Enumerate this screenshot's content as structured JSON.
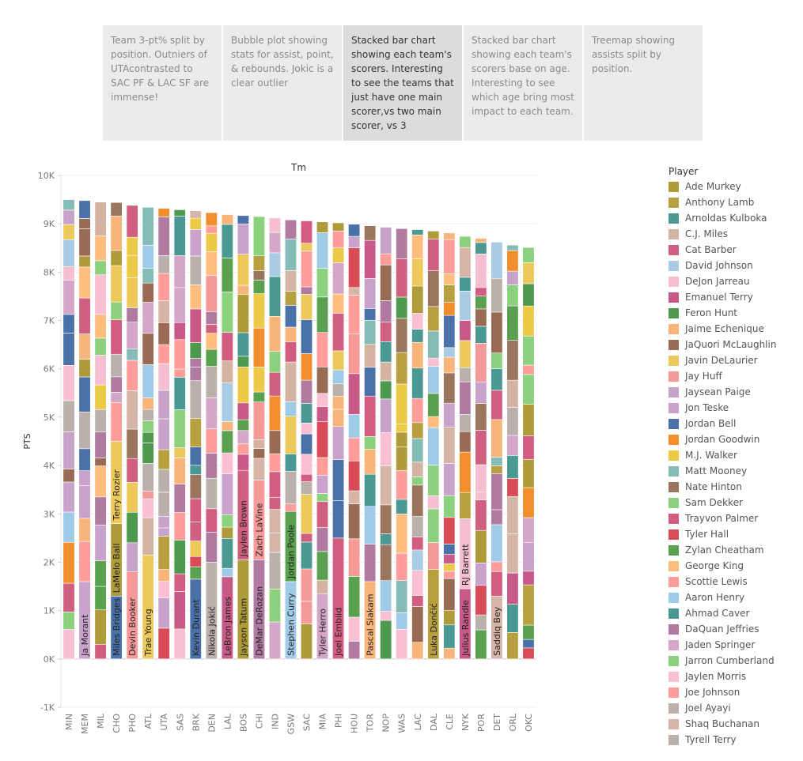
{
  "story": {
    "cards": [
      {
        "text": "Team 3-pt% split by position. Outniers of UTAcontrasted to SAC PF & LAC SF are immense!",
        "active": false
      },
      {
        "text": "Bubble plot showing stats for assist, point, & rebounds. Jokic is a clear outlier",
        "active": false
      },
      {
        "text": "Stacked bar chart showing each team's scorers. Interesting to see the teams that just have one main scorer,vs two main scorer, vs 3",
        "active": true
      },
      {
        "text": "Stacked bar chart showing each team's scorers base on age. Interesting to see which age bring most impact to each team.",
        "active": false
      },
      {
        "text": "Treemap showing assists split by position.",
        "active": false
      }
    ]
  },
  "chart_data": {
    "type": "bar",
    "stacked": true,
    "title": "Tm",
    "xlabel": "",
    "ylabel": "PTS",
    "ylim": [
      -1000,
      10000
    ],
    "yticks": [
      -1000,
      0,
      1000,
      2000,
      3000,
      4000,
      5000,
      6000,
      7000,
      8000,
      9000,
      10000
    ],
    "ytick_labels": [
      "-1K",
      "0K",
      "1K",
      "2K",
      "3K",
      "4K",
      "5K",
      "6K",
      "7K",
      "8K",
      "9K",
      "10K"
    ],
    "grid": true,
    "legend_position": "right",
    "categories": [
      "MIN",
      "MEM",
      "MIL",
      "CHO",
      "PHO",
      "ATL",
      "UTA",
      "SAS",
      "BRK",
      "DEN",
      "LAL",
      "BOS",
      "CHI",
      "IND",
      "GSW",
      "SAC",
      "MIA",
      "PHI",
      "HOU",
      "TOR",
      "NOP",
      "WAS",
      "LAC",
      "DAL",
      "CLE",
      "NYK",
      "POR",
      "DET",
      "ORL",
      "OKC"
    ],
    "totals": [
      9500,
      9480,
      9450,
      9440,
      9380,
      9340,
      9320,
      9290,
      9270,
      9230,
      9190,
      9170,
      9150,
      9120,
      9080,
      9060,
      9040,
      9020,
      8990,
      8960,
      8930,
      8900,
      8880,
      8850,
      8810,
      8740,
      8700,
      8620,
      8560,
      8510
    ],
    "annotations": [
      {
        "team": "MEM",
        "label": "Ja Morant",
        "value": 1600
      },
      {
        "team": "CHO",
        "label": "Miles Bridges",
        "value": 1300
      },
      {
        "team": "CHO",
        "label": "LaMelo Ball",
        "value": 1500
      },
      {
        "team": "CHO",
        "label": "Terry Rozier",
        "value": 1700
      },
      {
        "team": "PHO",
        "label": "Devin Booker",
        "value": 1800
      },
      {
        "team": "ATL",
        "label": "Trae Young",
        "value": 2150
      },
      {
        "team": "BRK",
        "label": "Kevin Durant",
        "value": 1650
      },
      {
        "team": "DEN",
        "label": "Nikola Jokić",
        "value": 2000
      },
      {
        "team": "LAL",
        "label": "LeBron James",
        "value": 1700
      },
      {
        "team": "BOS",
        "label": "Jayson Tatum",
        "value": 2050
      },
      {
        "team": "BOS",
        "label": "Jaylen Brown",
        "value": 1850
      },
      {
        "team": "CHI",
        "label": "DeMar DeRozan",
        "value": 2050
      },
      {
        "team": "CHI",
        "label": "Zach LaVine",
        "value": 1650
      },
      {
        "team": "GSW",
        "label": "Stephen Curry",
        "value": 1600
      },
      {
        "team": "GSW",
        "label": "Jordan Poole",
        "value": 1450
      },
      {
        "team": "MIA",
        "label": "Tyler Herro",
        "value": 1350
      },
      {
        "team": "PHI",
        "label": "Joel Embiid",
        "value": 2500
      },
      {
        "team": "TOR",
        "label": "Pascal Siakam",
        "value": 1600
      },
      {
        "team": "DAL",
        "label": "Luka Dončić",
        "value": 1850
      },
      {
        "team": "NYK",
        "label": "Julius Randle",
        "value": 1450
      },
      {
        "team": "NYK",
        "label": "RJ Barrett",
        "value": 1450
      },
      {
        "team": "DET",
        "label": "Saddiq Bey",
        "value": 1300
      }
    ],
    "legend": {
      "title": "Player",
      "items": [
        {
          "name": "Ade Murkey",
          "color": "#b09b3a"
        },
        {
          "name": "Anthony Lamb",
          "color": "#b8a040"
        },
        {
          "name": "Arnoldas Kulboka",
          "color": "#4a9a93"
        },
        {
          "name": "C.J. Miles",
          "color": "#d5b3a2"
        },
        {
          "name": "Cat Barber",
          "color": "#d0607f"
        },
        {
          "name": "David Johnson",
          "color": "#a9cbe6"
        },
        {
          "name": "DeJon Jarreau",
          "color": "#f6bfd0"
        },
        {
          "name": "Emanuel Terry",
          "color": "#c75a87"
        },
        {
          "name": "Feron Hunt",
          "color": "#4d9a4f"
        },
        {
          "name": "Jaime Echenique",
          "color": "#f9b47a"
        },
        {
          "name": "JaQuori McLaughlin",
          "color": "#9a6b54"
        },
        {
          "name": "Javin DeLaurier",
          "color": "#ecc95a"
        },
        {
          "name": "Jay Huff",
          "color": "#f69a99"
        },
        {
          "name": "Jaysean Paige",
          "color": "#c8a2c8"
        },
        {
          "name": "Jon Teske",
          "color": "#c9a3cc"
        },
        {
          "name": "Jordan Bell",
          "color": "#4b72a8"
        },
        {
          "name": "Jordan Goodwin",
          "color": "#f28e2b"
        },
        {
          "name": "M.J. Walker",
          "color": "#edc948"
        },
        {
          "name": "Matt Mooney",
          "color": "#86bcb6"
        },
        {
          "name": "Nate Hinton",
          "color": "#9c755f"
        },
        {
          "name": "Sam Dekker",
          "color": "#8cd17d"
        },
        {
          "name": "Trayvon Palmer",
          "color": "#d35d80"
        },
        {
          "name": "Tyler Hall",
          "color": "#d94b57"
        },
        {
          "name": "Zylan Cheatham",
          "color": "#59a14f"
        },
        {
          "name": "George King",
          "color": "#ffbe7d"
        },
        {
          "name": "Scottie Lewis",
          "color": "#ff9d9a"
        },
        {
          "name": "Aaron Henry",
          "color": "#a0cbe8"
        },
        {
          "name": "Ahmad Caver",
          "color": "#499894"
        },
        {
          "name": "DaQuan Jeffries",
          "color": "#b07aa1"
        },
        {
          "name": "Jaden Springer",
          "color": "#d4a6c8"
        },
        {
          "name": "Jarron Cumberland",
          "color": "#8cd17d"
        },
        {
          "name": "Jaylen Morris",
          "color": "#fabfd2"
        },
        {
          "name": "Joe Johnson",
          "color": "#ff9d9a"
        },
        {
          "name": "Joel Ayayi",
          "color": "#bab0ac"
        },
        {
          "name": "Shaq Buchanan",
          "color": "#d7b5a6"
        },
        {
          "name": "Tyrell Terry",
          "color": "#bab0ac"
        }
      ]
    }
  }
}
